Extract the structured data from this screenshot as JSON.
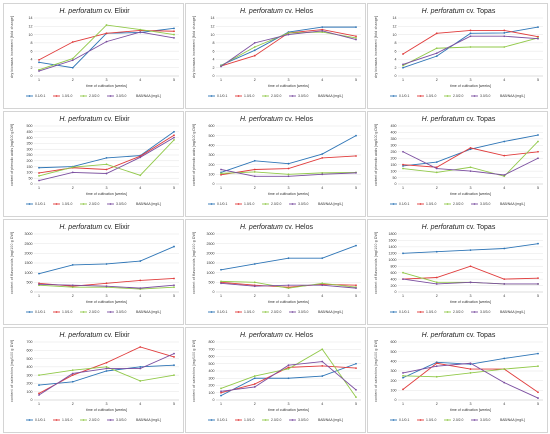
{
  "colors": {
    "s1": "#2e75b6",
    "s2": "#e03c3c",
    "s3": "#92c94a",
    "s4": "#7b4ea0"
  },
  "chart_data": [
    {
      "type": "line",
      "title_species": "H. perforatum",
      "title_cv": " cv. Elixir",
      "ylabel": "dry biomass increment [fold change]",
      "xlabel": "time of cultivation [weeks]",
      "legend_title": "BAB/NAA [mg/L]",
      "x": [
        1,
        2,
        3,
        4,
        5
      ],
      "ylim": [
        0,
        14
      ],
      "yticks": [
        0,
        2,
        4,
        6,
        8,
        10,
        12,
        14
      ],
      "series": [
        {
          "name": "0.1/0.1",
          "values": [
            3.3,
            2.0,
            10.3,
            10.5,
            11.5
          ]
        },
        {
          "name": "1.0/1.0",
          "values": [
            3.9,
            8.2,
            10.3,
            11.0,
            10.8
          ]
        },
        {
          "name": "2.0/2.0",
          "values": [
            1.5,
            4.2,
            12.3,
            11.2,
            10.0
          ]
        },
        {
          "name": "3.0/3.0",
          "values": [
            1.2,
            3.8,
            8.3,
            10.6,
            9.2
          ]
        }
      ]
    },
    {
      "type": "line",
      "title_species": "H. perforatum",
      "title_cv": " cv. Helos",
      "ylabel": "dry biomass increment [fold change]",
      "xlabel": "time of cultivation [weeks]",
      "legend_title": "BAB/NAA [mg/L]",
      "x": [
        1,
        2,
        3,
        4,
        5
      ],
      "ylim": [
        0,
        14
      ],
      "yticks": [
        0,
        2,
        4,
        6,
        8,
        10,
        12,
        14
      ],
      "series": [
        {
          "name": "0.1/0.1",
          "values": [
            2.6,
            6.2,
            10.6,
            11.8,
            11.8
          ]
        },
        {
          "name": "1.0/1.0",
          "values": [
            2.4,
            4.9,
            10.4,
            11.2,
            9.6
          ]
        },
        {
          "name": "2.0/2.0",
          "values": [
            2.5,
            7.0,
            10.4,
            10.6,
            9.2
          ]
        },
        {
          "name": "3.0/3.0",
          "values": [
            2.3,
            8.0,
            10.0,
            10.9,
            8.8
          ]
        }
      ]
    },
    {
      "type": "line",
      "title_species": "H. perforatum",
      "title_cv": " cv. Topas",
      "ylabel": "dry biomass increment [fold change]",
      "xlabel": "time of cultivation [weeks]",
      "legend_title": "BAB/NAA [mg/L]",
      "x": [
        1,
        2,
        3,
        4,
        5
      ],
      "ylim": [
        0,
        14
      ],
      "yticks": [
        0,
        2,
        4,
        6,
        8,
        10,
        12,
        14
      ],
      "series": [
        {
          "name": "0.1/0.1",
          "values": [
            2.0,
            4.8,
            10.3,
            10.4,
            11.8
          ]
        },
        {
          "name": "1.0/1.0",
          "values": [
            5.3,
            10.3,
            11.0,
            11.0,
            9.5
          ]
        },
        {
          "name": "2.0/2.0",
          "values": [
            2.5,
            6.7,
            7.0,
            7.0,
            9.2
          ]
        },
        {
          "name": "3.0/3.0",
          "values": [
            2.8,
            5.5,
            9.6,
            9.6,
            9.0
          ]
        }
      ]
    },
    {
      "type": "line",
      "title_species": "H. perforatum",
      "title_cv": " cv. Elixir",
      "ylabel": "content of phenolic acids [mg/100 g DW]",
      "xlabel": "time of cultivation [weeks]",
      "legend_title": "BAB/NAA [mg/L]",
      "x": [
        1,
        2,
        3,
        4,
        5
      ],
      "ylim": [
        0,
        500
      ],
      "yticks": [
        0,
        50,
        100,
        150,
        200,
        250,
        300,
        350,
        400,
        450,
        500
      ],
      "series": [
        {
          "name": "0.1/0.1",
          "values": [
            140,
            150,
            225,
            245,
            450
          ]
        },
        {
          "name": "1.0/1.0",
          "values": [
            95,
            140,
            125,
            240,
            420
          ]
        },
        {
          "name": "2.0/2.0",
          "values": [
            70,
            145,
            170,
            75,
            380
          ]
        },
        {
          "name": "3.0/3.0",
          "values": [
            30,
            100,
            90,
            230,
            400
          ]
        }
      ]
    },
    {
      "type": "line",
      "title_species": "H. perforatum",
      "title_cv": " cv. Helos",
      "ylabel": "content of phenolic acids [mg/100 g DW]",
      "xlabel": "time of cultivation [weeks]",
      "legend_title": "BAB/NAA [mg/L]",
      "x": [
        1,
        2,
        3,
        4,
        5
      ],
      "ylim": [
        0,
        600
      ],
      "yticks": [
        0,
        100,
        200,
        300,
        400,
        500,
        600
      ],
      "series": [
        {
          "name": "0.1/0.1",
          "values": [
            120,
            240,
            210,
            310,
            500
          ]
        },
        {
          "name": "1.0/1.0",
          "values": [
            95,
            150,
            160,
            270,
            290
          ]
        },
        {
          "name": "2.0/2.0",
          "values": [
            110,
            125,
            100,
            115,
            120
          ]
        },
        {
          "name": "3.0/3.0",
          "values": [
            150,
            80,
            80,
            100,
            115
          ]
        }
      ]
    },
    {
      "type": "line",
      "title_species": "H. perforatum",
      "title_cv": " cv. Topas",
      "ylabel": "content of phenolic acids [mg/100 g DW]",
      "xlabel": "time of cultivation [weeks]",
      "legend_title": "BAB/NAA [mg/L]",
      "x": [
        1,
        2,
        3,
        4,
        5
      ],
      "ylim": [
        0,
        450
      ],
      "yticks": [
        0,
        50,
        100,
        150,
        200,
        250,
        300,
        350,
        400,
        450
      ],
      "series": [
        {
          "name": "0.1/0.1",
          "values": [
            140,
            170,
            270,
            330,
            380
          ]
        },
        {
          "name": "1.0/1.0",
          "values": [
            150,
            130,
            280,
            220,
            250
          ]
        },
        {
          "name": "2.0/2.0",
          "values": [
            120,
            90,
            130,
            60,
            330
          ]
        },
        {
          "name": "3.0/3.0",
          "values": [
            250,
            120,
            100,
            70,
            200
          ]
        }
      ]
    },
    {
      "type": "line",
      "title_species": "H. perforatum",
      "title_cv": " cv. Elixir",
      "ylabel": "content of flavonoids [mg/100 g DW]",
      "xlabel": "time of cultivation [weeks]",
      "legend_title": "BAB/NAA [mg/L]",
      "x": [
        1,
        2,
        3,
        4,
        5
      ],
      "ylim": [
        0,
        3000
      ],
      "yticks": [
        0,
        500,
        1000,
        1500,
        2000,
        2500,
        3000
      ],
      "series": [
        {
          "name": "0.1/0.1",
          "values": [
            950,
            1400,
            1450,
            1600,
            2350
          ]
        },
        {
          "name": "1.0/1.0",
          "values": [
            450,
            300,
            450,
            600,
            700
          ]
        },
        {
          "name": "2.0/2.0",
          "values": [
            350,
            250,
            250,
            150,
            250
          ]
        },
        {
          "name": "3.0/3.0",
          "values": [
            400,
            350,
            300,
            200,
            350
          ]
        }
      ]
    },
    {
      "type": "line",
      "title_species": "H. perforatum",
      "title_cv": " cv. Helos",
      "ylabel": "content of flavonoids [mg/100 g DW]",
      "xlabel": "time of cultivation [weeks]",
      "legend_title": "BAB/NAA [mg/L]",
      "x": [
        1,
        2,
        3,
        4,
        5
      ],
      "ylim": [
        0,
        3000
      ],
      "yticks": [
        0,
        500,
        1000,
        1500,
        2000,
        2500,
        3000
      ],
      "series": [
        {
          "name": "0.1/0.1",
          "values": [
            1150,
            1450,
            1750,
            1750,
            2400
          ]
        },
        {
          "name": "1.0/1.0",
          "values": [
            500,
            350,
            250,
            400,
            350
          ]
        },
        {
          "name": "2.0/2.0",
          "values": [
            550,
            500,
            200,
            450,
            250
          ]
        },
        {
          "name": "3.0/3.0",
          "values": [
            450,
            300,
            350,
            350,
            200
          ]
        }
      ]
    },
    {
      "type": "line",
      "title_species": "H. perforatum",
      "title_cv": " cv. Topas",
      "ylabel": "content of flavonoids [mg/100 g DW]",
      "xlabel": "time of cultivation [weeks]",
      "legend_title": "BAB/NAA [mg/L]",
      "x": [
        1,
        2,
        3,
        4,
        5
      ],
      "ylim": [
        0,
        1800
      ],
      "yticks": [
        0,
        200,
        400,
        600,
        800,
        1000,
        1200,
        1400,
        1600,
        1800
      ],
      "series": [
        {
          "name": "0.1/0.1",
          "values": [
            1200,
            1250,
            1300,
            1350,
            1500
          ]
        },
        {
          "name": "1.0/1.0",
          "values": [
            400,
            450,
            800,
            400,
            430
          ]
        },
        {
          "name": "2.0/2.0",
          "values": [
            600,
            300,
            300,
            250,
            250
          ]
        },
        {
          "name": "3.0/3.0",
          "values": [
            400,
            250,
            300,
            250,
            250
          ]
        }
      ]
    },
    {
      "type": "line",
      "title_species": "H. perforatum",
      "title_cv": " cv. Elixir",
      "ylabel": "content of catechins [mg/100 g DW]",
      "xlabel": "time of cultivation [weeks]",
      "legend_title": "BAB/NAA [mg/L]",
      "x": [
        1,
        2,
        3,
        4,
        5
      ],
      "ylim": [
        0,
        700
      ],
      "yticks": [
        0,
        100,
        200,
        300,
        400,
        500,
        600,
        700
      ],
      "series": [
        {
          "name": "0.1/0.1",
          "values": [
            180,
            220,
            350,
            400,
            420
          ]
        },
        {
          "name": "1.0/1.0",
          "values": [
            80,
            300,
            450,
            640,
            520
          ]
        },
        {
          "name": "2.0/2.0",
          "values": [
            300,
            360,
            400,
            230,
            300
          ]
        },
        {
          "name": "3.0/3.0",
          "values": [
            60,
            320,
            380,
            380,
            560
          ]
        }
      ]
    },
    {
      "type": "line",
      "title_species": "H. perforatum",
      "title_cv": " cv. Helos",
      "ylabel": "content of catechins [mg/100 g DW]",
      "xlabel": "time of cultivation [weeks]",
      "legend_title": "BAB/NAA [mg/L]",
      "x": [
        1,
        2,
        3,
        4,
        5
      ],
      "ylim": [
        0,
        800
      ],
      "yticks": [
        0,
        100,
        200,
        300,
        400,
        500,
        600,
        700,
        800
      ],
      "series": [
        {
          "name": "0.1/0.1",
          "values": [
            60,
            300,
            300,
            330,
            500
          ]
        },
        {
          "name": "1.0/1.0",
          "values": [
            100,
            220,
            450,
            470,
            440
          ]
        },
        {
          "name": "2.0/2.0",
          "values": [
            160,
            330,
            430,
            700,
            40
          ]
        },
        {
          "name": "3.0/3.0",
          "values": [
            120,
            180,
            480,
            530,
            140
          ]
        }
      ]
    },
    {
      "type": "line",
      "title_species": "H. perforatum",
      "title_cv": " cv. Topas",
      "ylabel": "content of catechins [mg/100 g DW]",
      "xlabel": "time of cultivation [weeks]",
      "legend_title": "BAB/NAA [mg/L]",
      "x": [
        1,
        2,
        3,
        4,
        5
      ],
      "ylim": [
        0,
        600
      ],
      "yticks": [
        0,
        100,
        200,
        300,
        400,
        500,
        600
      ],
      "series": [
        {
          "name": "0.1/0.1",
          "values": [
            230,
            390,
            370,
            430,
            480
          ]
        },
        {
          "name": "1.0/1.0",
          "values": [
            110,
            380,
            320,
            320,
            80
          ]
        },
        {
          "name": "2.0/2.0",
          "values": [
            250,
            240,
            280,
            320,
            350
          ]
        },
        {
          "name": "3.0/3.0",
          "values": [
            280,
            350,
            380,
            180,
            20
          ]
        }
      ]
    }
  ]
}
